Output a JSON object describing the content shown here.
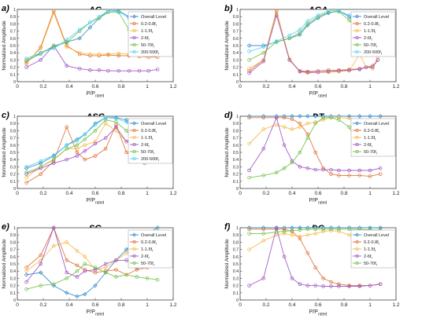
{
  "chart_data": [
    {
      "type": "line",
      "panel_label": "a)",
      "title": "AG",
      "xlabel_main": "P/P",
      "xlabel_sub": "rated",
      "ylabel": "Normalized Amplitude",
      "xlim": [
        0,
        1.2
      ],
      "ylim": [
        0,
        1
      ],
      "xticks": [
        "0",
        "0.2",
        "0.4",
        "0.6",
        "0.8",
        "1",
        "1.2"
      ],
      "yticks": [
        "0",
        "0.1",
        "0.2",
        "0.3",
        "0.4",
        "0.5",
        "0.6",
        "0.7",
        "0.8",
        "0.9",
        "1"
      ],
      "x": [
        0.07,
        0.18,
        0.28,
        0.38,
        0.48,
        0.56,
        0.63,
        0.7,
        0.78,
        0.86,
        0.94,
        1.01,
        1.08
      ],
      "series": [
        {
          "name": "Overall Level",
          "color": "#2e86c8",
          "marker": "diamond",
          "values": [
            0.28,
            0.4,
            0.48,
            0.55,
            0.6,
            0.75,
            0.88,
            0.98,
            0.98,
            0.9,
            0.8,
            0.78,
            0.8
          ]
        },
        {
          "name": "0.2-0.8f",
          "sub": "f",
          "color": "#e06a30",
          "marker": "circle",
          "values": [
            0.25,
            0.48,
            0.98,
            0.5,
            0.38,
            0.36,
            0.36,
            0.37,
            0.36,
            0.36,
            0.35,
            0.34,
            0.34
          ]
        },
        {
          "name": "1-1.5f",
          "sub": "f",
          "color": "#f5b640",
          "marker": "circle",
          "values": [
            0.27,
            0.46,
            0.95,
            0.48,
            0.4,
            0.38,
            0.38,
            0.38,
            0.39,
            0.38,
            0.37,
            0.36,
            0.37
          ]
        },
        {
          "name": "2-6f",
          "sub": "f",
          "color": "#9c4fc2",
          "marker": "circle",
          "values": [
            0.2,
            0.3,
            0.5,
            0.22,
            0.18,
            0.16,
            0.16,
            0.15,
            0.15,
            0.15,
            0.15,
            0.15,
            0.17
          ]
        },
        {
          "name": "50-70f",
          "sub": "f",
          "color": "#6bbf3e",
          "marker": "circle",
          "values": [
            0.3,
            0.38,
            0.5,
            0.54,
            0.7,
            0.82,
            0.88,
            0.96,
            0.96,
            0.72,
            0.62,
            0.6,
            0.58
          ]
        },
        {
          "name": "200-500f",
          "sub": "f",
          "color": "#4fd0f0",
          "marker": "circle",
          "values": [
            0.32,
            0.4,
            0.46,
            0.58,
            0.72,
            0.82,
            0.9,
            0.98,
            0.97,
            0.88,
            0.82,
            0.84,
            0.9
          ]
        }
      ]
    },
    {
      "type": "line",
      "panel_label": "b)",
      "title": "AGA",
      "xlabel_main": "P/P",
      "xlabel_sub": "rated",
      "ylabel": "Normalized Amplitude",
      "xlim": [
        0,
        1.2
      ],
      "ylim": [
        0,
        1
      ],
      "xticks": [
        "0",
        "0.2",
        "0.4",
        "0.6",
        "0.8",
        "1",
        "1.2"
      ],
      "yticks": [
        "0",
        "0.1",
        "0.2",
        "0.3",
        "0.4",
        "0.5",
        "0.6",
        "0.7",
        "0.8",
        "0.9",
        "1"
      ],
      "x": [
        0.07,
        0.18,
        0.28,
        0.38,
        0.46,
        0.52,
        0.6,
        0.68,
        0.76,
        0.84,
        0.92,
        0.97,
        1.02,
        1.06
      ],
      "series": [
        {
          "name": "Overall Level",
          "color": "#2e86c8",
          "marker": "diamond",
          "values": [
            0.5,
            0.5,
            0.55,
            0.6,
            0.65,
            0.78,
            0.88,
            0.95,
            0.98,
            0.9,
            0.75,
            0.72,
            0.78,
            0.85
          ]
        },
        {
          "name": "0.2-0.8f",
          "sub": "f",
          "color": "#e06a30",
          "marker": "circle",
          "values": [
            0.15,
            0.3,
            0.98,
            0.3,
            0.15,
            0.14,
            0.15,
            0.16,
            0.16,
            0.17,
            0.18,
            0.2,
            0.22,
            0.3
          ]
        },
        {
          "name": "1-1.5f",
          "sub": "f",
          "color": "#f5b640",
          "marker": "circle",
          "values": [
            0.18,
            0.3,
            0.96,
            0.32,
            0.14,
            0.12,
            0.13,
            0.13,
            0.14,
            0.15,
            0.38,
            0.2,
            0.18,
            0.34
          ]
        },
        {
          "name": "2-6f",
          "sub": "f",
          "color": "#9c4fc2",
          "marker": "circle",
          "values": [
            0.12,
            0.28,
            0.92,
            0.3,
            0.14,
            0.13,
            0.13,
            0.14,
            0.15,
            0.16,
            0.17,
            0.2,
            0.2,
            0.3
          ]
        },
        {
          "name": "50-70f",
          "sub": "f",
          "color": "#6bbf3e",
          "marker": "circle",
          "values": [
            0.3,
            0.4,
            0.55,
            0.6,
            0.68,
            0.8,
            0.9,
            0.96,
            0.97,
            0.85,
            0.68,
            0.62,
            0.6,
            0.58
          ]
        },
        {
          "name": "200-500f",
          "sub": "f",
          "color": "#4fd0f0",
          "marker": "circle",
          "values": [
            0.42,
            0.48,
            0.56,
            0.64,
            0.72,
            0.84,
            0.92,
            0.98,
            0.98,
            0.92,
            0.82,
            0.8,
            0.84,
            0.92
          ]
        }
      ]
    },
    {
      "type": "line",
      "panel_label": "c)",
      "title": "ASC",
      "xlabel_main": "P/P",
      "xlabel_sub": "rated",
      "ylabel": "Normalized Amplitude",
      "xlim": [
        0,
        1.2
      ],
      "ylim": [
        0,
        1
      ],
      "xticks": [
        "0",
        "0.2",
        "0.4",
        "0.6",
        "0.8",
        "1",
        "1.2"
      ],
      "yticks": [
        "0",
        "0.1",
        "0.2",
        "0.3",
        "0.4",
        "0.5",
        "0.6",
        "0.7",
        "0.8",
        "0.9",
        "1"
      ],
      "x": [
        0.07,
        0.18,
        0.28,
        0.38,
        0.46,
        0.52,
        0.6,
        0.68,
        0.76,
        0.84,
        0.92,
        0.98,
        1.04,
        1.09
      ],
      "series": [
        {
          "name": "Overall Level",
          "color": "#2e86c8",
          "marker": "diamond",
          "values": [
            0.28,
            0.35,
            0.45,
            0.6,
            0.68,
            0.75,
            0.9,
            0.98,
            0.98,
            0.95,
            0.7,
            0.68,
            0.7,
            0.72
          ]
        },
        {
          "name": "0.2-0.8f",
          "sub": "f",
          "color": "#e06a30",
          "marker": "circle",
          "values": [
            0.08,
            0.2,
            0.38,
            0.85,
            0.5,
            0.4,
            0.45,
            0.55,
            0.88,
            0.5,
            0.4,
            0.35,
            0.6,
            0.62
          ]
        },
        {
          "name": "1-1.5f",
          "sub": "f",
          "color": "#f5b640",
          "marker": "circle",
          "values": [
            0.15,
            0.3,
            0.4,
            0.55,
            0.55,
            0.6,
            0.65,
            0.9,
            0.8,
            0.65,
            0.6,
            0.6,
            0.65,
            0.7
          ]
        },
        {
          "name": "2-6f",
          "sub": "f",
          "color": "#9c4fc2",
          "marker": "circle",
          "values": [
            0.2,
            0.28,
            0.35,
            0.4,
            0.45,
            0.52,
            0.62,
            0.7,
            0.85,
            0.65,
            0.68,
            0.7,
            0.72,
            0.75
          ]
        },
        {
          "name": "50-70f",
          "sub": "f",
          "color": "#6bbf3e",
          "marker": "circle",
          "values": [
            0.22,
            0.3,
            0.4,
            0.55,
            0.6,
            0.68,
            0.8,
            0.95,
            0.92,
            0.8,
            0.65,
            0.7,
            0.72,
            0.74
          ]
        },
        {
          "name": "200-500f",
          "sub": "f",
          "color": "#4fd0f0",
          "marker": "circle",
          "values": [
            0.3,
            0.38,
            0.46,
            0.6,
            0.66,
            0.75,
            0.88,
            0.98,
            0.97,
            0.92,
            0.78,
            0.74,
            0.76,
            0.8
          ]
        }
      ]
    },
    {
      "type": "line",
      "panel_label": "d)",
      "title": "DT",
      "xlabel_main": "P/P",
      "xlabel_sub": "rated",
      "ylabel": "Normalized Amplitude",
      "xlim": [
        0,
        1.2
      ],
      "ylim": [
        0,
        1
      ],
      "xticks": [
        "0",
        "0.2",
        "0.4",
        "0.6",
        "0.8",
        "1",
        "1.2"
      ],
      "yticks": [
        "0",
        "0.1",
        "0.2",
        "0.3",
        "0.4",
        "0.5",
        "0.6",
        "0.7",
        "0.8",
        "0.9",
        "1"
      ],
      "x": [
        0.07,
        0.18,
        0.28,
        0.34,
        0.4,
        0.46,
        0.52,
        0.58,
        0.64,
        0.7,
        0.76,
        0.84,
        0.92,
        1.0,
        1.08
      ],
      "series": [
        {
          "name": "Overall Level",
          "color": "#2e86c8",
          "marker": "diamond",
          "values": [
            1,
            1,
            1,
            1,
            1,
            1,
            1,
            1,
            1,
            1,
            1,
            1,
            1,
            1,
            1
          ]
        },
        {
          "name": "0.2-0.8f",
          "sub": "f",
          "color": "#e06a30",
          "marker": "circle",
          "values": [
            0.98,
            0.98,
            0.98,
            0.98,
            0.96,
            0.9,
            0.75,
            0.5,
            0.28,
            0.2,
            0.18,
            0.18,
            0.18,
            0.17,
            0.2
          ]
        },
        {
          "name": "1-1.5f",
          "sub": "f",
          "color": "#f5b640",
          "marker": "circle",
          "values": [
            0.62,
            0.82,
            0.88,
            0.85,
            0.82,
            0.85,
            0.9,
            0.92,
            0.95,
            0.98,
            0.98,
            0.97,
            0.95,
            0.92,
            0.95
          ]
        },
        {
          "name": "2-6f",
          "sub": "f",
          "color": "#9c4fc2",
          "marker": "circle",
          "values": [
            0.25,
            0.55,
            0.98,
            0.6,
            0.38,
            0.3,
            0.28,
            0.26,
            0.26,
            0.26,
            0.25,
            0.25,
            0.25,
            0.25,
            0.28
          ]
        },
        {
          "name": "50-70f",
          "sub": "f",
          "color": "#6bbf3e",
          "marker": "circle",
          "values": [
            0.15,
            0.18,
            0.22,
            0.28,
            0.36,
            0.5,
            0.7,
            0.9,
            0.98,
            0.98,
            0.95,
            0.85,
            0.55,
            0.52,
            0.55
          ]
        }
      ]
    },
    {
      "type": "line",
      "panel_label": "e)",
      "title": "SG",
      "xlabel_main": "P/P",
      "xlabel_sub": "rated",
      "ylabel": "Normalized Amplitude",
      "xlim": [
        0,
        1.2
      ],
      "ylim": [
        0,
        1
      ],
      "xticks": [
        "0",
        "0.2",
        "0.4",
        "0.6",
        "0.8",
        "1",
        "1.2"
      ],
      "yticks": [
        "0",
        "0.1",
        "0.2",
        "0.3",
        "0.4",
        "0.5",
        "0.6",
        "0.7",
        "0.8",
        "0.9",
        "1"
      ],
      "x": [
        0.07,
        0.18,
        0.28,
        0.38,
        0.46,
        0.52,
        0.6,
        0.68,
        0.76,
        0.84,
        0.92,
        1.0,
        1.08
      ],
      "series": [
        {
          "name": "Overall Level",
          "color": "#2e86c8",
          "marker": "diamond",
          "values": [
            0.35,
            0.38,
            0.2,
            0.1,
            0.05,
            0.08,
            0.2,
            0.38,
            0.55,
            0.7,
            0.82,
            0.92,
            1.0
          ]
        },
        {
          "name": "0.2-0.8f",
          "sub": "f",
          "color": "#e06a30",
          "marker": "circle",
          "values": [
            0.45,
            0.62,
            1.0,
            0.55,
            0.48,
            0.42,
            0.38,
            0.4,
            0.42,
            0.35,
            0.42,
            0.45,
            0.48
          ]
        },
        {
          "name": "1-1.5f",
          "sub": "f",
          "color": "#f5b640",
          "marker": "circle",
          "values": [
            0.4,
            0.55,
            0.75,
            0.8,
            0.68,
            0.6,
            0.42,
            0.45,
            0.55,
            0.65,
            0.75,
            0.62,
            0.65
          ]
        },
        {
          "name": "2-6f",
          "sub": "f",
          "color": "#9c4fc2",
          "marker": "circle",
          "values": [
            0.25,
            0.5,
            1.0,
            0.38,
            0.32,
            0.4,
            0.42,
            0.5,
            0.55,
            0.55,
            0.45,
            0.48,
            0.5
          ]
        },
        {
          "name": "50-70f",
          "sub": "f",
          "color": "#6bbf3e",
          "marker": "circle",
          "values": [
            0.15,
            0.2,
            0.22,
            0.3,
            0.4,
            0.5,
            0.45,
            0.38,
            0.32,
            0.35,
            0.32,
            0.3,
            0.28
          ]
        }
      ]
    },
    {
      "type": "line",
      "panel_label": "f)",
      "title": "DG",
      "xlabel_main": "P/P",
      "xlabel_sub": "rated",
      "ylabel": "Normalized Amplitude",
      "xlim": [
        0,
        1.2
      ],
      "ylim": [
        0,
        1
      ],
      "xticks": [
        "0",
        "0.2",
        "0.4",
        "0.6",
        "0.8",
        "1",
        "1.2"
      ],
      "yticks": [
        "0",
        "0.1",
        "0.2",
        "0.3",
        "0.4",
        "0.5",
        "0.6",
        "0.7",
        "0.8",
        "0.9",
        "1"
      ],
      "x": [
        0.07,
        0.18,
        0.28,
        0.34,
        0.4,
        0.46,
        0.52,
        0.58,
        0.64,
        0.7,
        0.76,
        0.84,
        0.92,
        1.0,
        1.08
      ],
      "series": [
        {
          "name": "Overall Level",
          "color": "#2e86c8",
          "marker": "diamond",
          "values": [
            1,
            1,
            1,
            1,
            1,
            1,
            1,
            1,
            1,
            1,
            1,
            1,
            1,
            1,
            1
          ]
        },
        {
          "name": "0.2-0.8f",
          "sub": "f",
          "color": "#e06a30",
          "marker": "circle",
          "values": [
            0.98,
            0.98,
            0.98,
            0.98,
            0.95,
            0.85,
            0.65,
            0.45,
            0.3,
            0.25,
            0.22,
            0.2,
            0.2,
            0.2,
            0.22
          ]
        },
        {
          "name": "1-1.5f",
          "sub": "f",
          "color": "#f5b640",
          "marker": "circle",
          "values": [
            0.7,
            0.82,
            0.9,
            0.92,
            0.9,
            0.88,
            0.9,
            0.92,
            0.95,
            0.96,
            0.95,
            0.9,
            0.85,
            0.75,
            0.72
          ]
        },
        {
          "name": "2-6f",
          "sub": "f",
          "color": "#9c4fc2",
          "marker": "circle",
          "values": [
            0.2,
            0.3,
            1.0,
            0.6,
            0.3,
            0.22,
            0.2,
            0.2,
            0.19,
            0.19,
            0.19,
            0.19,
            0.19,
            0.2,
            0.22
          ]
        },
        {
          "name": "50-70f",
          "sub": "f",
          "color": "#6bbf3e",
          "marker": "circle",
          "values": [
            0.92,
            0.92,
            0.94,
            0.95,
            0.96,
            0.97,
            0.98,
            0.98,
            0.98,
            0.98,
            0.98,
            0.98,
            0.98,
            0.97,
            0.97
          ]
        }
      ]
    }
  ]
}
